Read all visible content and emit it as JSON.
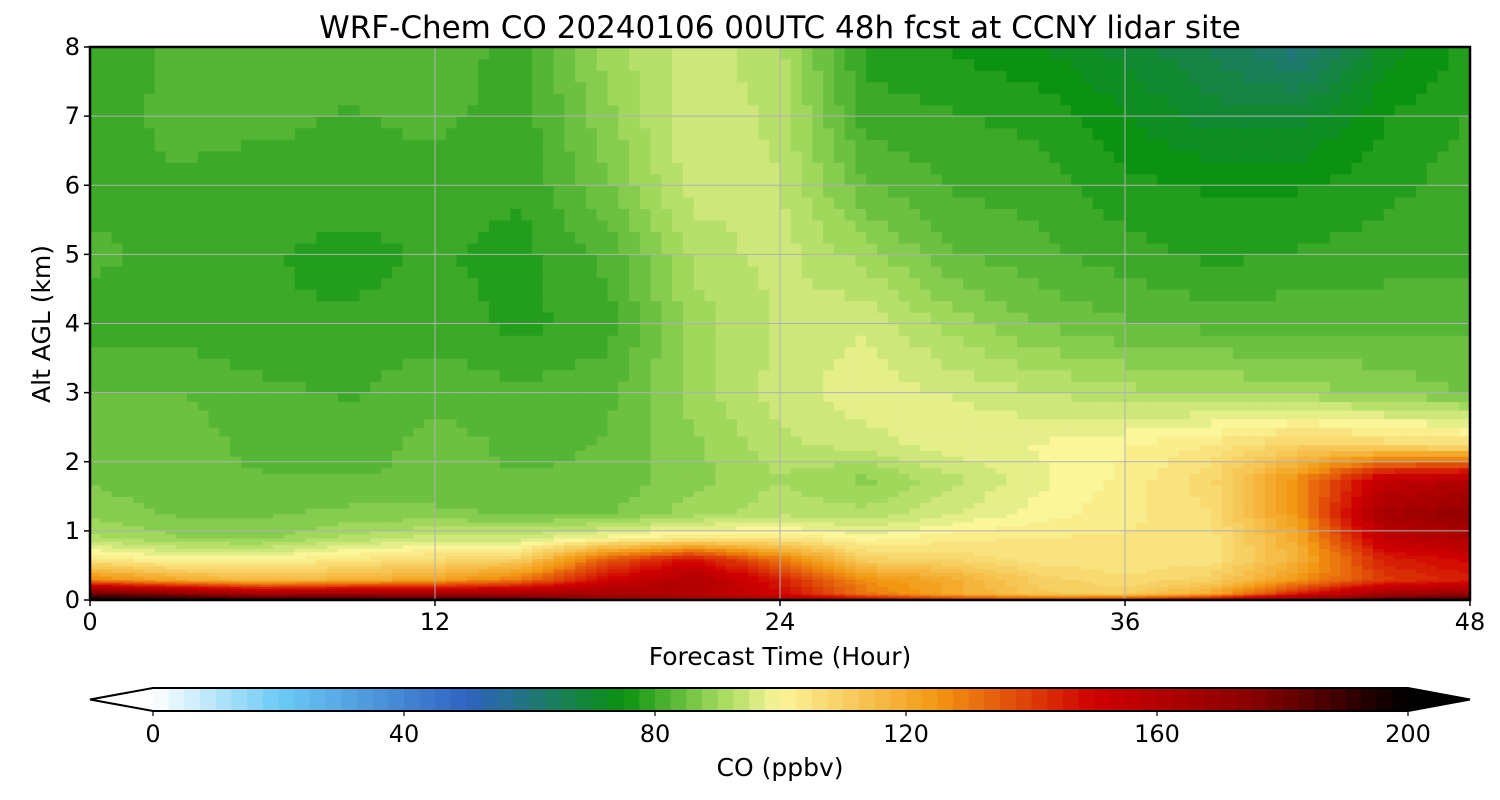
{
  "chart_data": {
    "type": "heatmap",
    "title": "WRF-Chem CO  20240106 00UTC 48h fcst at CCNY lidar site",
    "xlabel": "Forecast Time (Hour)",
    "ylabel": "Alt AGL (km)",
    "xlim": [
      0,
      48
    ],
    "ylim": [
      0,
      8
    ],
    "xticks": [
      0,
      12,
      24,
      36,
      48
    ],
    "yticks": [
      0,
      1,
      2,
      3,
      4,
      5,
      6,
      7,
      8
    ],
    "grid": true,
    "x": [
      0,
      3,
      6,
      9,
      12,
      15,
      18,
      21,
      24,
      27,
      30,
      33,
      36,
      39,
      42,
      45,
      48
    ],
    "y": [
      0,
      0.1,
      0.3,
      0.6,
      0.9,
      1.25,
      1.75,
      2.25,
      3,
      4,
      5,
      6,
      7,
      8
    ],
    "z": [
      [
        200,
        200,
        198,
        196,
        195,
        192,
        175,
        168,
        165,
        155,
        148,
        145,
        150,
        160,
        178,
        190,
        195
      ],
      [
        182,
        175,
        165,
        168,
        165,
        165,
        165,
        160,
        150,
        130,
        120,
        112,
        110,
        120,
        145,
        165,
        170
      ],
      [
        128,
        120,
        115,
        118,
        122,
        130,
        150,
        162,
        145,
        126,
        120,
        110,
        107,
        110,
        125,
        140,
        145
      ],
      [
        104,
        100,
        100,
        104,
        107,
        110,
        135,
        148,
        130,
        110,
        108,
        105,
        104,
        105,
        118,
        145,
        150
      ],
      [
        92,
        89,
        88,
        92,
        95,
        95,
        100,
        104,
        104,
        100,
        103,
        104,
        104,
        105,
        120,
        155,
        162
      ],
      [
        88,
        86,
        86,
        87,
        87,
        86,
        86,
        90,
        93,
        92,
        96,
        100,
        103,
        106,
        125,
        165,
        172
      ],
      [
        86,
        84,
        84,
        84,
        84,
        84,
        84,
        88,
        91,
        88,
        93,
        98,
        102,
        108,
        126,
        155,
        160
      ],
      [
        86,
        85,
        83,
        82,
        85,
        83,
        84,
        88,
        93,
        95,
        98,
        99,
        101,
        104,
        110,
        108,
        106
      ],
      [
        84,
        84,
        82,
        81,
        83,
        82,
        83,
        90,
        95,
        98,
        96,
        94,
        92,
        91,
        90,
        88,
        86
      ],
      [
        80,
        80,
        79,
        79,
        80,
        78,
        80,
        90,
        94,
        96,
        90,
        86,
        84,
        83,
        83,
        83,
        83
      ],
      [
        82,
        80,
        79,
        78,
        79,
        78,
        82,
        92,
        95,
        90,
        84,
        82,
        80,
        78,
        79,
        80,
        80
      ],
      [
        80,
        81,
        80,
        80,
        80,
        79,
        86,
        95,
        94,
        84,
        81,
        80,
        77,
        76,
        76,
        78,
        80
      ],
      [
        80,
        82,
        82,
        81,
        82,
        80,
        88,
        96,
        93,
        80,
        79,
        78,
        74,
        70,
        70,
        76,
        79
      ],
      [
        79,
        82,
        84,
        82,
        83,
        80,
        90,
        95,
        92,
        78,
        76,
        74,
        70,
        66,
        60,
        72,
        77
      ]
    ],
    "colorbar": {
      "label": "CO  (ppbv)",
      "min": 0,
      "max": 200,
      "ticks": [
        0,
        40,
        80,
        120,
        160,
        200
      ],
      "extend": "both",
      "colormap_stops": [
        {
          "value": 0,
          "color": "#ffffff"
        },
        {
          "value": 20,
          "color": "#6ccbf5"
        },
        {
          "value": 50,
          "color": "#2f63c1"
        },
        {
          "value": 75,
          "color": "#0a9210"
        },
        {
          "value": 90,
          "color": "#9fd85a"
        },
        {
          "value": 100,
          "color": "#fbf69a"
        },
        {
          "value": 125,
          "color": "#f29712"
        },
        {
          "value": 150,
          "color": "#cf0000"
        },
        {
          "value": 175,
          "color": "#8a0000"
        },
        {
          "value": 200,
          "color": "#000000"
        }
      ]
    }
  }
}
